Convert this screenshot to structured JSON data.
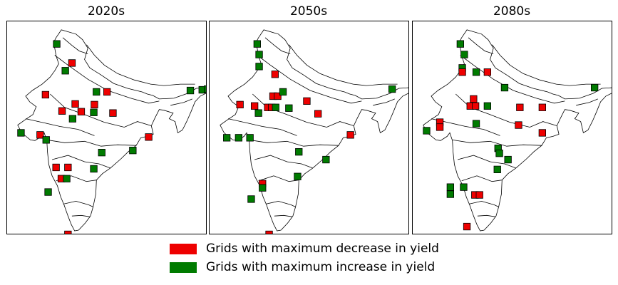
{
  "panels": [
    {
      "title": "2020s",
      "grids": [
        {
          "lon": 74.3,
          "lat": 34.6,
          "change": "increase"
        },
        {
          "lon": 76.6,
          "lat": 31.9,
          "change": "decrease"
        },
        {
          "lon": 75.6,
          "lat": 30.8,
          "change": "increase"
        },
        {
          "lon": 72.6,
          "lat": 27.4,
          "change": "decrease"
        },
        {
          "lon": 80.3,
          "lat": 27.8,
          "change": "increase"
        },
        {
          "lon": 81.9,
          "lat": 27.8,
          "change": "decrease"
        },
        {
          "lon": 94.5,
          "lat": 28.0,
          "change": "increase"
        },
        {
          "lon": 96.3,
          "lat": 28.1,
          "change": "increase"
        },
        {
          "lon": 97.1,
          "lat": 28.2,
          "change": "increase"
        },
        {
          "lon": 77.1,
          "lat": 26.1,
          "change": "decrease"
        },
        {
          "lon": 80.0,
          "lat": 26.0,
          "change": "decrease"
        },
        {
          "lon": 75.1,
          "lat": 25.1,
          "change": "decrease"
        },
        {
          "lon": 78.0,
          "lat": 25.0,
          "change": "decrease"
        },
        {
          "lon": 79.9,
          "lat": 24.9,
          "change": "increase"
        },
        {
          "lon": 82.8,
          "lat": 24.8,
          "change": "decrease"
        },
        {
          "lon": 76.7,
          "lat": 24.0,
          "change": "increase"
        },
        {
          "lon": 68.9,
          "lat": 22.0,
          "change": "increase"
        },
        {
          "lon": 71.8,
          "lat": 21.7,
          "change": "decrease"
        },
        {
          "lon": 72.7,
          "lat": 21.0,
          "change": "increase"
        },
        {
          "lon": 88.2,
          "lat": 21.4,
          "change": "decrease"
        },
        {
          "lon": 85.8,
          "lat": 19.5,
          "change": "increase"
        },
        {
          "lon": 81.1,
          "lat": 19.2,
          "change": "increase"
        },
        {
          "lon": 74.2,
          "lat": 17.1,
          "change": "decrease"
        },
        {
          "lon": 76.0,
          "lat": 17.1,
          "change": "decrease"
        },
        {
          "lon": 79.9,
          "lat": 16.9,
          "change": "increase"
        },
        {
          "lon": 75.0,
          "lat": 15.5,
          "change": "decrease"
        },
        {
          "lon": 75.8,
          "lat": 15.5,
          "change": "increase"
        },
        {
          "lon": 73.0,
          "lat": 13.6,
          "change": "increase"
        },
        {
          "lon": 76.0,
          "lat": 7.6,
          "change": "decrease"
        }
      ]
    },
    {
      "title": "2050s",
      "grids": [
        {
          "lon": 74.0,
          "lat": 34.6,
          "change": "increase"
        },
        {
          "lon": 74.3,
          "lat": 33.1,
          "change": "increase"
        },
        {
          "lon": 74.3,
          "lat": 31.4,
          "change": "increase"
        },
        {
          "lon": 76.7,
          "lat": 30.3,
          "change": "decrease"
        },
        {
          "lon": 76.4,
          "lat": 27.2,
          "change": "decrease"
        },
        {
          "lon": 77.1,
          "lat": 27.2,
          "change": "decrease"
        },
        {
          "lon": 77.9,
          "lat": 27.8,
          "change": "increase"
        },
        {
          "lon": 81.5,
          "lat": 26.5,
          "change": "decrease"
        },
        {
          "lon": 94.4,
          "lat": 28.2,
          "change": "increase"
        },
        {
          "lon": 71.4,
          "lat": 26.0,
          "change": "decrease"
        },
        {
          "lon": 73.6,
          "lat": 25.8,
          "change": "decrease"
        },
        {
          "lon": 75.6,
          "lat": 25.6,
          "change": "decrease"
        },
        {
          "lon": 76.2,
          "lat": 25.6,
          "change": "decrease"
        },
        {
          "lon": 76.8,
          "lat": 25.6,
          "change": "increase"
        },
        {
          "lon": 78.8,
          "lat": 25.5,
          "change": "increase"
        },
        {
          "lon": 74.2,
          "lat": 24.8,
          "change": "increase"
        },
        {
          "lon": 83.2,
          "lat": 24.7,
          "change": "decrease"
        },
        {
          "lon": 69.4,
          "lat": 21.3,
          "change": "increase"
        },
        {
          "lon": 71.2,
          "lat": 21.3,
          "change": "increase"
        },
        {
          "lon": 72.9,
          "lat": 21.3,
          "change": "increase"
        },
        {
          "lon": 88.1,
          "lat": 21.7,
          "change": "decrease"
        },
        {
          "lon": 80.3,
          "lat": 19.3,
          "change": "increase"
        },
        {
          "lon": 84.4,
          "lat": 18.2,
          "change": "increase"
        },
        {
          "lon": 80.1,
          "lat": 15.8,
          "change": "increase"
        },
        {
          "lon": 74.8,
          "lat": 14.8,
          "change": "decrease"
        },
        {
          "lon": 74.8,
          "lat": 14.2,
          "change": "increase"
        },
        {
          "lon": 73.1,
          "lat": 12.6,
          "change": "increase"
        },
        {
          "lon": 75.8,
          "lat": 7.6,
          "change": "decrease"
        }
      ]
    },
    {
      "title": "2080s",
      "grids": [
        {
          "lon": 74.0,
          "lat": 34.6,
          "change": "increase"
        },
        {
          "lon": 74.6,
          "lat": 33.1,
          "change": "increase"
        },
        {
          "lon": 74.3,
          "lat": 31.2,
          "change": "increase"
        },
        {
          "lon": 74.3,
          "lat": 30.6,
          "change": "decrease"
        },
        {
          "lon": 76.4,
          "lat": 30.6,
          "change": "increase"
        },
        {
          "lon": 78.1,
          "lat": 30.6,
          "change": "decrease"
        },
        {
          "lon": 80.7,
          "lat": 28.4,
          "change": "increase"
        },
        {
          "lon": 94.3,
          "lat": 28.4,
          "change": "increase"
        },
        {
          "lon": 76.0,
          "lat": 26.8,
          "change": "decrease"
        },
        {
          "lon": 75.5,
          "lat": 25.8,
          "change": "decrease"
        },
        {
          "lon": 76.3,
          "lat": 25.8,
          "change": "decrease"
        },
        {
          "lon": 78.1,
          "lat": 25.8,
          "change": "increase"
        },
        {
          "lon": 83.0,
          "lat": 25.6,
          "change": "decrease"
        },
        {
          "lon": 86.4,
          "lat": 25.6,
          "change": "decrease"
        },
        {
          "lon": 70.9,
          "lat": 23.5,
          "change": "decrease"
        },
        {
          "lon": 70.9,
          "lat": 22.8,
          "change": "decrease"
        },
        {
          "lon": 76.4,
          "lat": 23.3,
          "change": "increase"
        },
        {
          "lon": 82.8,
          "lat": 23.1,
          "change": "decrease"
        },
        {
          "lon": 86.4,
          "lat": 22.0,
          "change": "decrease"
        },
        {
          "lon": 68.9,
          "lat": 22.3,
          "change": "increase"
        },
        {
          "lon": 79.7,
          "lat": 19.8,
          "change": "increase"
        },
        {
          "lon": 79.9,
          "lat": 19.1,
          "change": "increase"
        },
        {
          "lon": 81.2,
          "lat": 18.2,
          "change": "increase"
        },
        {
          "lon": 79.6,
          "lat": 16.8,
          "change": "increase"
        },
        {
          "lon": 72.5,
          "lat": 14.3,
          "change": "increase"
        },
        {
          "lon": 74.5,
          "lat": 14.3,
          "change": "increase"
        },
        {
          "lon": 72.5,
          "lat": 13.3,
          "change": "increase"
        },
        {
          "lon": 76.2,
          "lat": 13.2,
          "change": "decrease"
        },
        {
          "lon": 76.9,
          "lat": 13.2,
          "change": "decrease"
        },
        {
          "lon": 75.0,
          "lat": 8.7,
          "change": "decrease"
        }
      ]
    }
  ],
  "legend": [
    {
      "label": "Grids with maximum decrease in yield",
      "color": "#ee0000",
      "change": "decrease"
    },
    {
      "label": "Grids with maximum increase in yield",
      "color": "#007b00",
      "change": "increase"
    }
  ],
  "colors": {
    "decrease": "#ee0000",
    "increase": "#007b00",
    "outline": "#000000"
  }
}
